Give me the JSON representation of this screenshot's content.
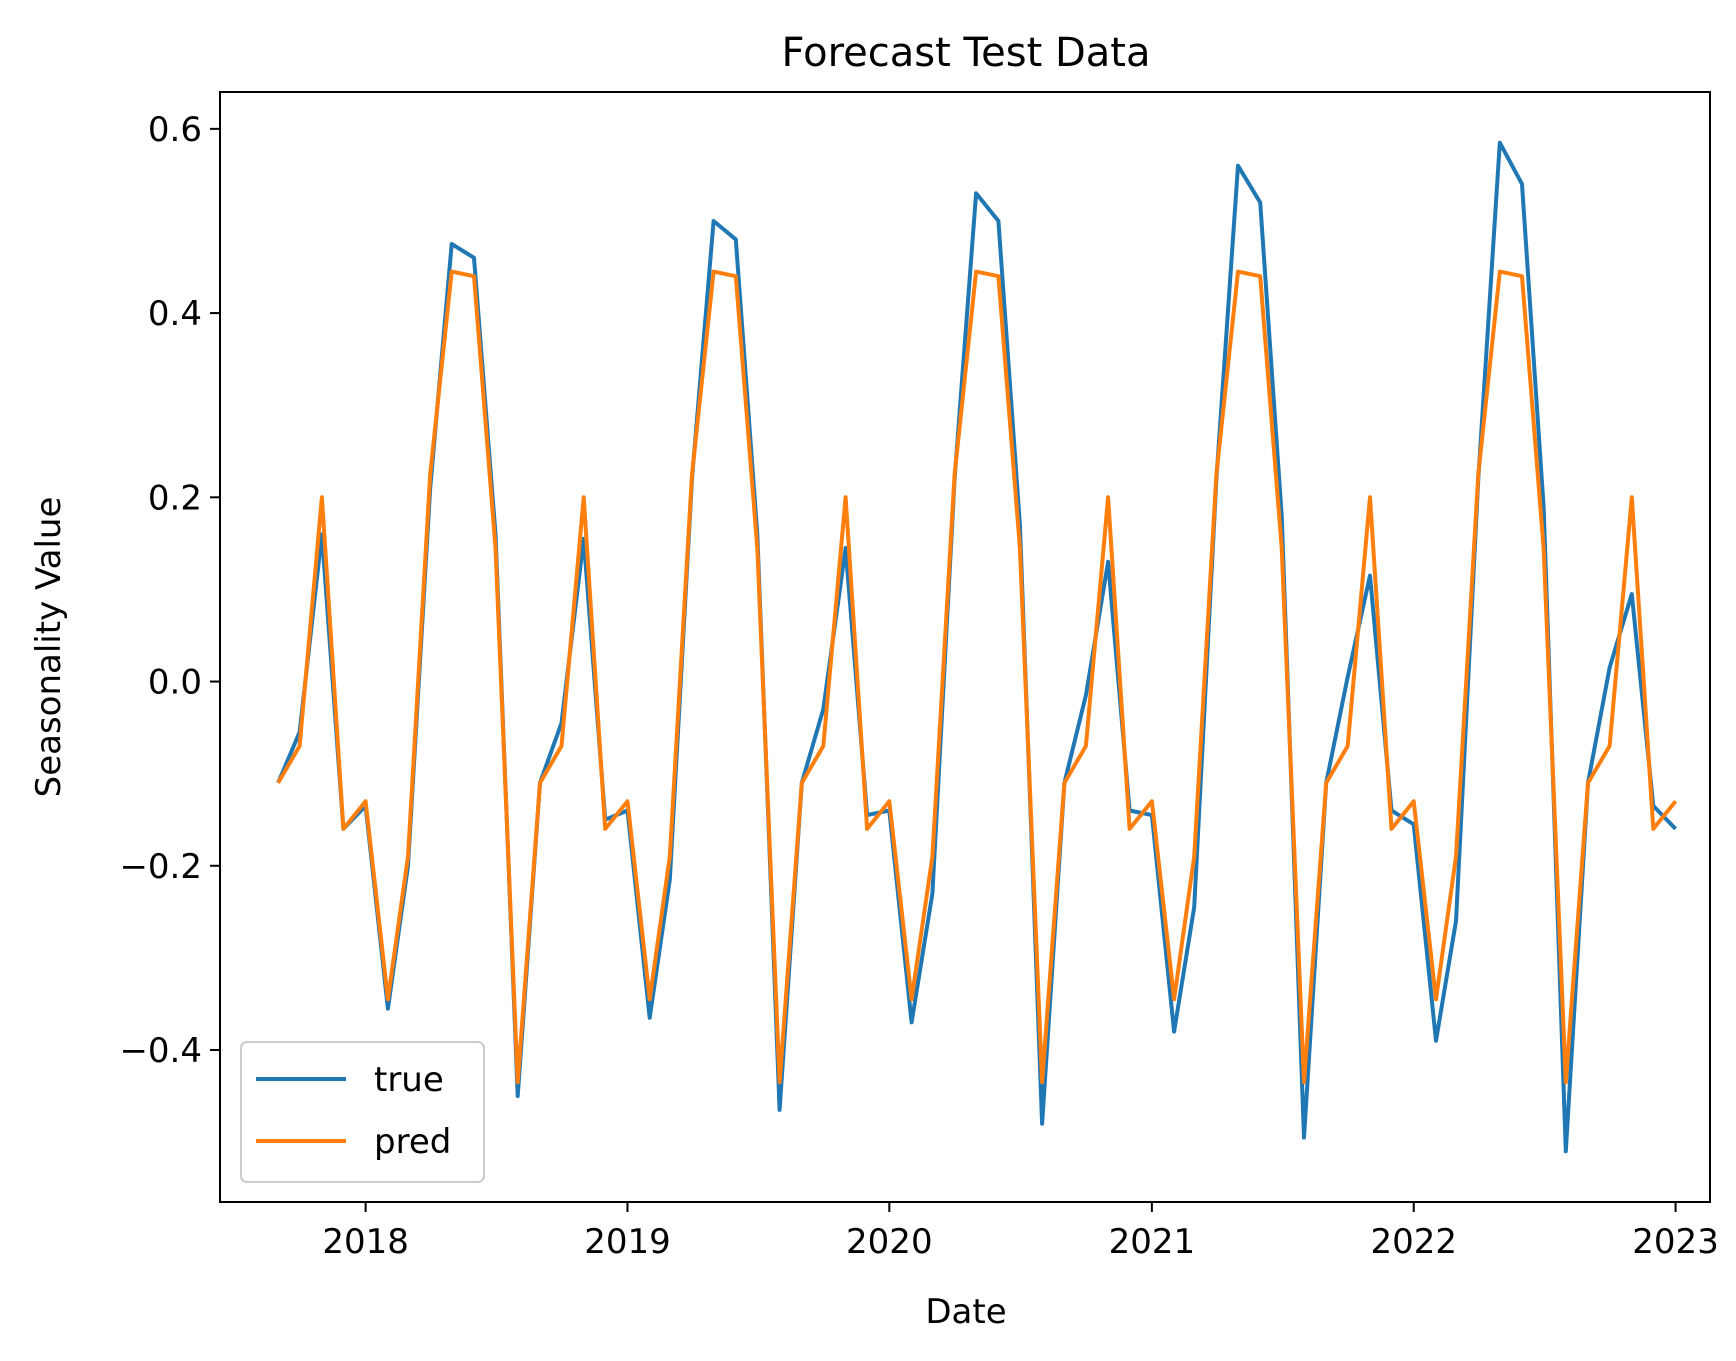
{
  "chart_data": {
    "type": "line",
    "title": "Forecast Test Data",
    "xlabel": "Date",
    "ylabel": "Seasonality Value",
    "xlim": [
      "2017-06-12",
      "2023-02-18"
    ],
    "ylim": [
      -0.565,
      0.64
    ],
    "x_ticks": [
      "2018",
      "2019",
      "2020",
      "2021",
      "2022",
      "2023"
    ],
    "y_ticks": [
      {
        "value": 0.6,
        "label": "0.6"
      },
      {
        "value": 0.4,
        "label": "0.4"
      },
      {
        "value": 0.2,
        "label": "0.2"
      },
      {
        "value": 0.0,
        "label": "0.0"
      },
      {
        "value": -0.2,
        "label": "−0.2"
      },
      {
        "value": -0.4,
        "label": "−0.4"
      }
    ],
    "grid": false,
    "legend_position": "lower-left",
    "x": [
      "2017-09",
      "2017-10",
      "2017-11",
      "2017-12",
      "2018-01",
      "2018-02",
      "2018-03",
      "2018-04",
      "2018-05",
      "2018-06",
      "2018-07",
      "2018-08",
      "2018-09",
      "2018-10",
      "2018-11",
      "2018-12",
      "2019-01",
      "2019-02",
      "2019-03",
      "2019-04",
      "2019-05",
      "2019-06",
      "2019-07",
      "2019-08",
      "2019-09",
      "2019-10",
      "2019-11",
      "2019-12",
      "2020-01",
      "2020-02",
      "2020-03",
      "2020-04",
      "2020-05",
      "2020-06",
      "2020-07",
      "2020-08",
      "2020-09",
      "2020-10",
      "2020-11",
      "2020-12",
      "2021-01",
      "2021-02",
      "2021-03",
      "2021-04",
      "2021-05",
      "2021-06",
      "2021-07",
      "2021-08",
      "2021-09",
      "2021-10",
      "2021-11",
      "2021-12",
      "2022-01",
      "2022-02",
      "2022-03",
      "2022-04",
      "2022-05",
      "2022-06",
      "2022-07",
      "2022-08",
      "2022-09",
      "2022-10",
      "2022-11",
      "2022-12",
      "2023-01"
    ],
    "series": [
      {
        "name": "true",
        "color": "#1f77b4",
        "values": [
          -0.11,
          -0.055,
          0.16,
          -0.16,
          -0.135,
          -0.355,
          -0.2,
          0.21,
          0.475,
          0.46,
          0.16,
          -0.45,
          -0.11,
          -0.045,
          0.155,
          -0.15,
          -0.14,
          -0.365,
          -0.215,
          0.22,
          0.5,
          0.48,
          0.16,
          -0.465,
          -0.11,
          -0.03,
          0.145,
          -0.145,
          -0.14,
          -0.37,
          -0.23,
          0.22,
          0.53,
          0.5,
          0.17,
          -0.48,
          -0.11,
          -0.015,
          0.13,
          -0.14,
          -0.145,
          -0.38,
          -0.245,
          0.22,
          0.56,
          0.52,
          0.18,
          -0.495,
          -0.11,
          0.005,
          0.115,
          -0.14,
          -0.155,
          -0.39,
          -0.26,
          0.22,
          0.585,
          0.54,
          0.19,
          -0.51,
          -0.11,
          0.015,
          0.095,
          -0.135,
          -0.16
        ]
      },
      {
        "name": "pred",
        "color": "#ff7f0e",
        "values": [
          -0.11,
          -0.07,
          0.2,
          -0.16,
          -0.13,
          -0.345,
          -0.19,
          0.225,
          0.445,
          0.44,
          0.145,
          -0.435,
          -0.11,
          -0.07,
          0.2,
          -0.16,
          -0.13,
          -0.345,
          -0.19,
          0.225,
          0.445,
          0.44,
          0.145,
          -0.435,
          -0.11,
          -0.07,
          0.2,
          -0.16,
          -0.13,
          -0.345,
          -0.19,
          0.225,
          0.445,
          0.44,
          0.145,
          -0.435,
          -0.11,
          -0.07,
          0.2,
          -0.16,
          -0.13,
          -0.345,
          -0.19,
          0.225,
          0.445,
          0.44,
          0.145,
          -0.435,
          -0.11,
          -0.07,
          0.2,
          -0.16,
          -0.13,
          -0.345,
          -0.19,
          0.225,
          0.445,
          0.44,
          0.145,
          -0.435,
          -0.11,
          -0.07,
          0.2,
          -0.16,
          -0.13
        ]
      }
    ]
  }
}
